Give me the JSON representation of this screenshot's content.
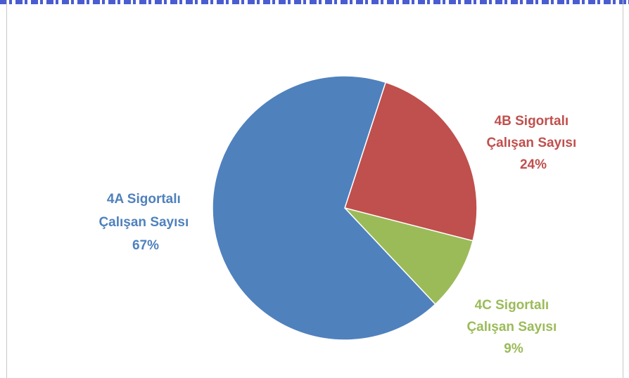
{
  "chart_data": {
    "type": "pie",
    "title": "",
    "slices": [
      {
        "label_line1": "4B Sigortalı",
        "label_line2": "Çalışan Sayısı",
        "value_label": "24%",
        "value": 24,
        "color": "#c0504d"
      },
      {
        "label_line1": "4C Sigortalı",
        "label_line2": "Çalışan Sayısı",
        "value_label": "9%",
        "value": 9,
        "color": "#9bbb59"
      },
      {
        "label_line1": "4A Sigortalı",
        "label_line2": "Çalışan Sayısı",
        "value_label": "67%",
        "value": 67,
        "color": "#4f81bd"
      }
    ],
    "legend": "none"
  }
}
